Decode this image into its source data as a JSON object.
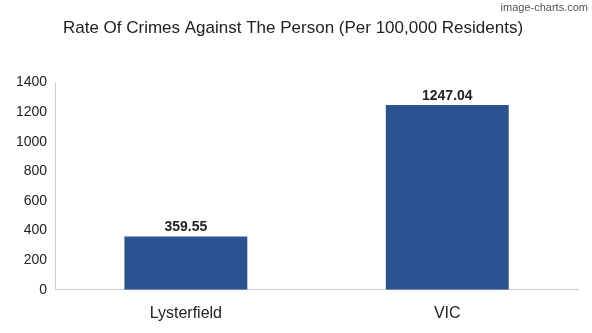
{
  "chart_data": {
    "type": "bar",
    "title": "Rate Of Crimes Against The Person (Per 100,000 Residents)",
    "annotations": [
      "image-charts.com"
    ],
    "categories": [
      "Lysterfield",
      "VIC"
    ],
    "values": [
      359.55,
      1247.04
    ],
    "color": "#2b5390",
    "ylim": [
      0,
      1400
    ],
    "yticks": [
      0,
      200,
      400,
      600,
      800,
      1000,
      1200,
      1400
    ],
    "grid": false,
    "data_labels": true
  }
}
